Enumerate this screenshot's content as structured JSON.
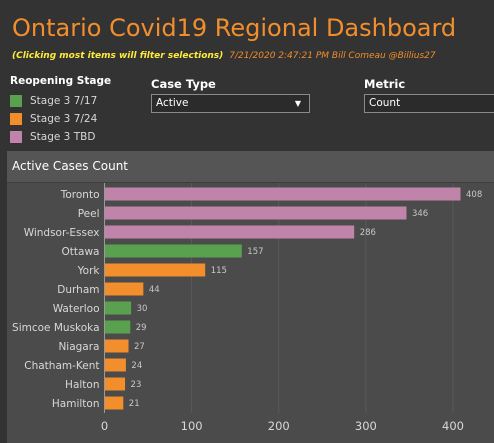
{
  "header": {
    "title": "Ontario Covid19 Regional Dashboard",
    "hint": "(Clicking most items will filter selections)",
    "meta": "7/21/2020 2:47:21 PM  Bill Comeau @Billius27"
  },
  "legend": {
    "title": "Reopening Stage",
    "items": [
      {
        "label": "Stage 3 7/17",
        "color": "#59a14f"
      },
      {
        "label": "Stage 3 7/24",
        "color": "#f28e2b"
      },
      {
        "label": "Stage 3 TBD",
        "color": "#c084ab"
      }
    ]
  },
  "filters": {
    "case_type": {
      "label": "Case Type",
      "value": "Active"
    },
    "metric": {
      "label": "Metric",
      "value": "Count"
    }
  },
  "panel": {
    "title": "Active Cases Count"
  },
  "colors": {
    "stage_7_17": "#59a14f",
    "stage_7_24": "#f28e2b",
    "stage_tbd": "#c084ab"
  },
  "chart_data": {
    "type": "bar",
    "orientation": "horizontal",
    "categories": [
      "Toronto",
      "Peel",
      "Windsor-Essex",
      "Ottawa",
      "York",
      "Durham",
      "Waterloo",
      "Simcoe Muskoka",
      "Niagara",
      "Chatham-Kent",
      "Halton",
      "Hamilton"
    ],
    "values": [
      408,
      346,
      286,
      157,
      115,
      44,
      30,
      29,
      27,
      24,
      23,
      21
    ],
    "stages": [
      "Stage 3 TBD",
      "Stage 3 TBD",
      "Stage 3 TBD",
      "Stage 3 7/17",
      "Stage 3 7/24",
      "Stage 3 7/24",
      "Stage 3 7/17",
      "Stage 3 7/17",
      "Stage 3 7/24",
      "Stage 3 7/24",
      "Stage 3 7/24",
      "Stage 3 7/24"
    ],
    "xlim": [
      0,
      450
    ],
    "xticks": [
      0,
      100,
      200,
      300,
      400
    ]
  }
}
